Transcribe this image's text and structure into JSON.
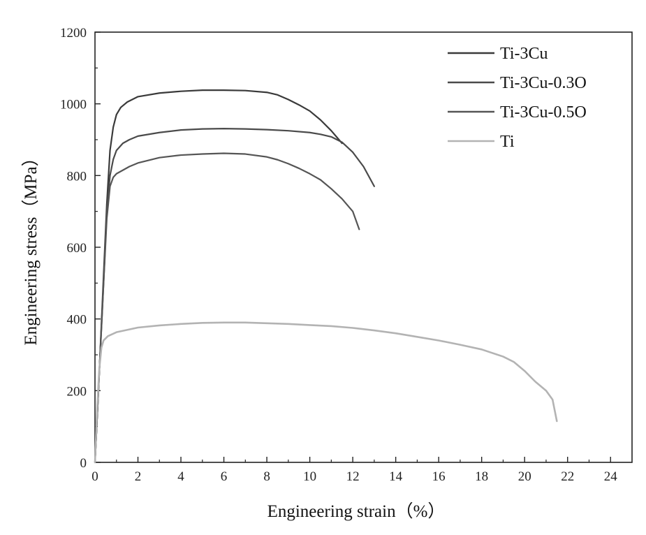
{
  "chart_data": {
    "type": "line",
    "title": "",
    "xlabel": "Engineering strain（%）",
    "ylabel": "Engineering stress（MPa）",
    "xlim": [
      0,
      25
    ],
    "ylim": [
      0,
      1200
    ],
    "xticks": [
      0,
      2,
      4,
      6,
      8,
      10,
      12,
      14,
      16,
      18,
      20,
      22,
      24
    ],
    "yticks": [
      0,
      200,
      400,
      600,
      800,
      1000,
      1200
    ],
    "legend_position": "top-right",
    "series": [
      {
        "name": "Ti-3Cu",
        "color": "#3a3a3a",
        "x": [
          0,
          0.2,
          0.4,
          0.55,
          0.7,
          0.85,
          1.0,
          1.2,
          1.5,
          2,
          3,
          4,
          5,
          6,
          7,
          8,
          8.5,
          9,
          9.5,
          10,
          10.5,
          11,
          11.5
        ],
        "y": [
          0,
          250,
          520,
          720,
          870,
          935,
          970,
          990,
          1005,
          1020,
          1030,
          1035,
          1038,
          1038,
          1037,
          1032,
          1025,
          1012,
          997,
          980,
          955,
          925,
          890
        ]
      },
      {
        "name": "Ti-3Cu-0.3O",
        "color": "#4a4a4a",
        "x": [
          0,
          0.2,
          0.4,
          0.55,
          0.7,
          0.85,
          1.0,
          1.3,
          1.6,
          2,
          3,
          4,
          5,
          6,
          7,
          8,
          9,
          10,
          10.5,
          11,
          11.5,
          12,
          12.5,
          13
        ],
        "y": [
          0,
          250,
          500,
          700,
          800,
          845,
          870,
          890,
          900,
          910,
          920,
          927,
          930,
          931,
          930,
          928,
          925,
          920,
          915,
          908,
          893,
          865,
          825,
          770
        ]
      },
      {
        "name": "Ti-3Cu-0.5O",
        "color": "#555555",
        "x": [
          0,
          0.2,
          0.4,
          0.55,
          0.7,
          0.85,
          1.0,
          1.3,
          1.6,
          2,
          3,
          4,
          5,
          6,
          7,
          8,
          8.5,
          9,
          9.5,
          10,
          10.5,
          11,
          11.5,
          12,
          12.3
        ],
        "y": [
          0,
          250,
          500,
          680,
          770,
          795,
          805,
          815,
          825,
          835,
          850,
          857,
          860,
          862,
          860,
          852,
          844,
          833,
          820,
          805,
          788,
          763,
          735,
          700,
          650
        ]
      },
      {
        "name": "Ti",
        "color": "#b3b3b3",
        "x": [
          0,
          0.1,
          0.2,
          0.3,
          0.4,
          0.6,
          1,
          2,
          3,
          4,
          5,
          6,
          7,
          8,
          9,
          10,
          11,
          12,
          13,
          14,
          15,
          16,
          17,
          18,
          19,
          19.5,
          20,
          20.5,
          21,
          21.3,
          21.5
        ],
        "y": [
          0,
          150,
          260,
          320,
          340,
          352,
          363,
          376,
          382,
          386,
          389,
          390,
          390,
          388,
          386,
          383,
          380,
          375,
          368,
          360,
          350,
          340,
          328,
          315,
          295,
          280,
          255,
          225,
          200,
          175,
          115
        ]
      }
    ]
  }
}
